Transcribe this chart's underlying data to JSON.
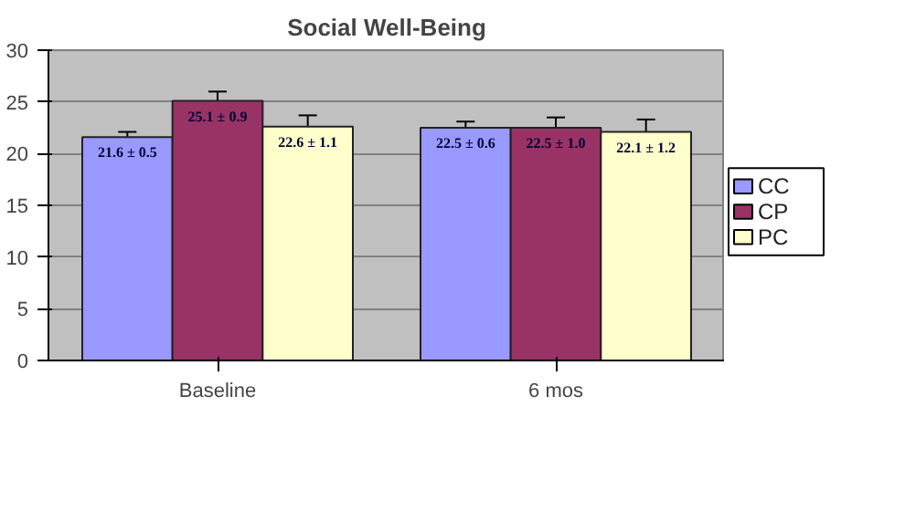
{
  "chart_data": {
    "type": "bar",
    "title": "Social Well-Being",
    "categories": [
      "Baseline",
      "6 mos"
    ],
    "series": [
      {
        "name": "CC",
        "color": "#9999ff",
        "values": [
          21.6,
          22.5
        ],
        "errors": [
          0.5,
          0.6
        ],
        "value_labels": [
          "21.6 ± 0.5",
          "22.5 ± 0.6"
        ]
      },
      {
        "name": "CP",
        "color": "#993366",
        "values": [
          25.1,
          22.5
        ],
        "errors": [
          0.9,
          1.0
        ],
        "value_labels": [
          "25.1 ± 0.9",
          "22.5 ± 1.0"
        ]
      },
      {
        "name": "PC",
        "color": "#ffffcc",
        "values": [
          22.6,
          22.1
        ],
        "errors": [
          1.1,
          1.2
        ],
        "value_labels": [
          "22.6 ± 1.1",
          "22.1 ± 1.2"
        ]
      }
    ],
    "ylim": [
      0,
      30
    ],
    "yticks": [
      0,
      5,
      10,
      15,
      20,
      25,
      30
    ],
    "grid": "y",
    "legend": "right"
  }
}
